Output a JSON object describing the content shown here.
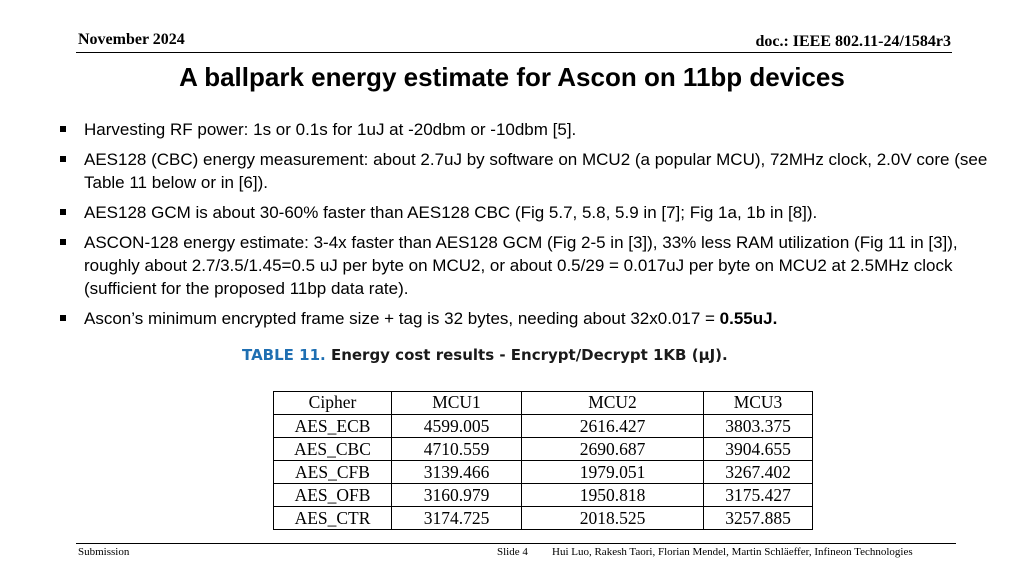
{
  "header": {
    "date": "November 2024",
    "doc_id": "doc.: IEEE 802.11-24/1584r3"
  },
  "slide": {
    "title": "A ballpark energy estimate for Ascon on 11bp devices",
    "bullets": [
      {
        "text": "Harvesting RF power: 1s or 0.1s for 1uJ at -20dbm or -10dbm [5].",
        "bold_tail": ""
      },
      {
        "text": "AES128 (CBC) energy measurement: about 2.7uJ by software on MCU2 (a popular MCU), 72MHz clock, 2.0V core (see Table 11 below or in [6]).",
        "bold_tail": ""
      },
      {
        "text": "AES128 GCM is about 30-60% faster than AES128 CBC (Fig 5.7, 5.8, 5.9 in [7]; Fig 1a, 1b in [8]).",
        "bold_tail": ""
      },
      {
        "text": "ASCON-128 energy estimate: 3-4x faster than AES128 GCM (Fig 2-5 in [3]), 33% less RAM utilization (Fig 11 in [3]), roughly about 2.7/3.5/1.45=0.5 uJ per byte on MCU2, or about 0.5/29 = 0.017uJ per byte on MCU2 at 2.5MHz clock (sufficient for the proposed 11bp data rate).",
        "bold_tail": ""
      },
      {
        "text": "Ascon’s minimum encrypted frame size + tag is 32 bytes, needing about 32x0.017 = ",
        "bold_tail": "0.55uJ."
      }
    ]
  },
  "table": {
    "caption_number": "TABLE 11.",
    "caption_text": "Energy cost results - Encrypt/Decrypt 1KB (μJ).",
    "headers": [
      "Cipher",
      "MCU1",
      "MCU2",
      "MCU3"
    ],
    "rows": [
      [
        "AES_ECB",
        "4599.005",
        "2616.427",
        "3803.375"
      ],
      [
        "AES_CBC",
        "4710.559",
        "2690.687",
        "3904.655"
      ],
      [
        "AES_CFB",
        "3139.466",
        "1979.051",
        "3267.402"
      ],
      [
        "AES_OFB",
        "3160.979",
        "1950.818",
        "3175.427"
      ],
      [
        "AES_CTR",
        "3174.725",
        "2018.525",
        "3257.885"
      ]
    ]
  },
  "footer": {
    "left": "Submission",
    "slide": "Slide 4",
    "authors": "Hui Luo, Rakesh Taori, Florian Mendel, Martin Schläeffer, Infineon Technologies"
  }
}
